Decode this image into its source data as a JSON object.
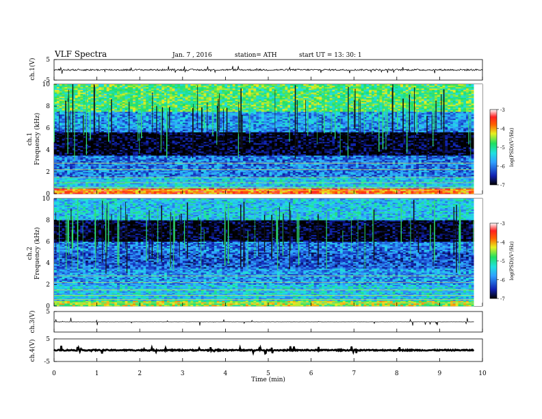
{
  "header": {
    "title": "VLF  Spectra",
    "date": "Jan.  7  , 2016",
    "station": "station= ATH",
    "start": "start  UT  =    13: 30: 1"
  },
  "chart_data": [
    {
      "type": "line",
      "panel": "ch1-waveform",
      "ylabel": "ch.1(V)",
      "ylim": [
        -5,
        5
      ],
      "yticks": [
        "5",
        "-5"
      ],
      "xlim": [
        0,
        10
      ],
      "baseline": 0,
      "noise_amplitude": 0.8,
      "color": "#000000"
    },
    {
      "type": "heatmap",
      "panel": "ch1-spectrogram",
      "ylabel": "ch.1\nFrequency  (kHz)",
      "ylim": [
        0,
        10
      ],
      "yticks": [
        "0",
        "2",
        "4",
        "6",
        "8",
        "10"
      ],
      "xlim": [
        0,
        9.8
      ],
      "colorbar": {
        "label": "log(PSD)(V²/Hz)",
        "range": [
          -7,
          -3
        ],
        "ticks": [
          "-3",
          "-4",
          "-5",
          "-6",
          "-7"
        ]
      },
      "bands": [
        {
          "from": 0,
          "to": 0.5,
          "level": -3.8
        },
        {
          "from": 0.5,
          "to": 1.5,
          "level": -5.5
        },
        {
          "from": 1.5,
          "to": 3.5,
          "level": -6.0
        },
        {
          "from": 3.5,
          "to": 5.6,
          "level": -7.0
        },
        {
          "from": 5.6,
          "to": 6.0,
          "level": -6.0
        },
        {
          "from": 6.0,
          "to": 7.5,
          "level": -5.8
        },
        {
          "from": 7.5,
          "to": 10,
          "level": -4.8
        }
      ]
    },
    {
      "type": "heatmap",
      "panel": "ch2-spectrogram",
      "ylabel": "ch.2\nFrequency  (kHz)",
      "ylim": [
        0,
        10
      ],
      "yticks": [
        "0",
        "2",
        "4",
        "6",
        "8",
        "10"
      ],
      "xlim": [
        0,
        9.8
      ],
      "colorbar": {
        "label": "log(PSD)(V²/Hz)",
        "range": [
          -7,
          -3
        ],
        "ticks": [
          "-3",
          "-4",
          "-5",
          "-6",
          "-7"
        ]
      },
      "bands": [
        {
          "from": 0,
          "to": 0.5,
          "level": -4.5
        },
        {
          "from": 0.5,
          "to": 2.0,
          "level": -5.5
        },
        {
          "from": 2.0,
          "to": 3.5,
          "level": -5.8
        },
        {
          "from": 3.5,
          "to": 5.0,
          "level": -6.2
        },
        {
          "from": 5.0,
          "to": 6.0,
          "level": -6.0
        },
        {
          "from": 6.0,
          "to": 8.0,
          "level": -7.0
        },
        {
          "from": 8.0,
          "to": 10,
          "level": -5.5
        }
      ]
    },
    {
      "type": "line",
      "panel": "ch3-waveform",
      "ylabel": "ch.3(V)",
      "ylim": [
        -5,
        5
      ],
      "yticks": [
        "5"
      ],
      "xlim": [
        0,
        9.8
      ],
      "baseline": 0,
      "noise_amplitude": 0.1,
      "color": "#000000"
    },
    {
      "type": "line",
      "panel": "ch4-waveform",
      "ylabel": "ch.4(V)",
      "ylim": [
        -5,
        5
      ],
      "yticks": [
        "5",
        "-5"
      ],
      "xlim": [
        0,
        9.8
      ],
      "baseline": 0,
      "noise_amplitude": 0.5,
      "color": "#000000"
    }
  ],
  "xaxis": {
    "label": "Time  (min)",
    "range": [
      0,
      10
    ],
    "ticks": [
      "0",
      "1",
      "2",
      "3",
      "4",
      "5",
      "6",
      "7",
      "8",
      "9",
      "10"
    ]
  }
}
